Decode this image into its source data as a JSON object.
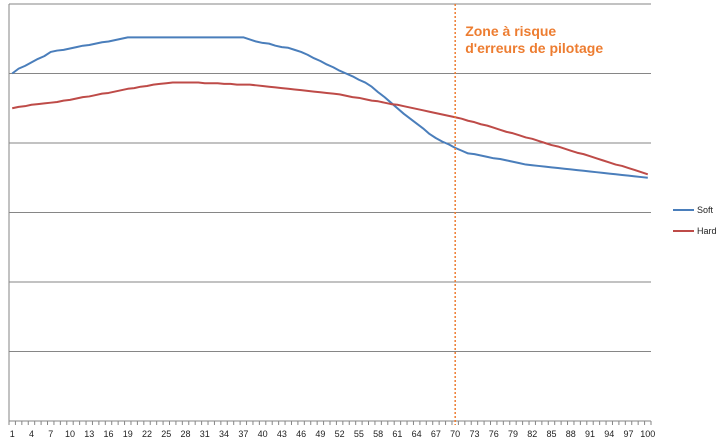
{
  "chart_data": {
    "type": "line",
    "x": [
      1,
      2,
      3,
      4,
      5,
      6,
      7,
      8,
      9,
      10,
      11,
      12,
      13,
      14,
      15,
      16,
      17,
      18,
      19,
      20,
      21,
      22,
      23,
      24,
      25,
      26,
      27,
      28,
      29,
      30,
      31,
      32,
      33,
      34,
      35,
      36,
      37,
      38,
      39,
      40,
      41,
      42,
      43,
      44,
      45,
      46,
      47,
      48,
      49,
      50,
      51,
      52,
      53,
      54,
      55,
      56,
      57,
      58,
      59,
      60,
      61,
      62,
      63,
      64,
      65,
      66,
      67,
      68,
      69,
      70,
      71,
      72,
      73,
      74,
      75,
      76,
      77,
      78,
      79,
      80,
      81,
      82,
      83,
      84,
      85,
      86,
      87,
      88,
      89,
      90,
      91,
      92,
      93,
      94,
      95,
      96,
      97,
      98,
      99,
      100
    ],
    "tick_labels": [
      "1",
      "4",
      "7",
      "10",
      "13",
      "16",
      "19",
      "22",
      "25",
      "28",
      "31",
      "34",
      "37",
      "40",
      "43",
      "46",
      "49",
      "52",
      "55",
      "58",
      "61",
      "64",
      "67",
      "70",
      "73",
      "76",
      "79",
      "82",
      "85",
      "88",
      "91",
      "94",
      "97",
      "100"
    ],
    "ylim": [
      0,
      6
    ],
    "gridlines": [
      1,
      2,
      3,
      4,
      5,
      6
    ],
    "grid": true,
    "legend_position": "right",
    "series": [
      {
        "name": "Soft",
        "color": "#4a7ebb",
        "values": [
          5.0,
          5.07,
          5.11,
          5.16,
          5.21,
          5.25,
          5.31,
          5.33,
          5.34,
          5.36,
          5.38,
          5.4,
          5.41,
          5.43,
          5.45,
          5.46,
          5.48,
          5.5,
          5.52,
          5.52,
          5.52,
          5.52,
          5.52,
          5.52,
          5.52,
          5.52,
          5.52,
          5.52,
          5.52,
          5.52,
          5.52,
          5.52,
          5.52,
          5.52,
          5.52,
          5.52,
          5.52,
          5.49,
          5.46,
          5.44,
          5.43,
          5.4,
          5.38,
          5.37,
          5.34,
          5.31,
          5.27,
          5.22,
          5.18,
          5.13,
          5.09,
          5.04,
          5.0,
          4.96,
          4.91,
          4.87,
          4.81,
          4.73,
          4.66,
          4.58,
          4.5,
          4.42,
          4.35,
          4.28,
          4.21,
          4.13,
          4.07,
          4.02,
          3.98,
          3.93,
          3.89,
          3.85,
          3.84,
          3.82,
          3.8,
          3.78,
          3.77,
          3.75,
          3.73,
          3.71,
          3.69,
          3.68,
          3.67,
          3.66,
          3.65,
          3.64,
          3.63,
          3.62,
          3.61,
          3.6,
          3.59,
          3.58,
          3.57,
          3.56,
          3.55,
          3.54,
          3.53,
          3.52,
          3.51,
          3.5
        ]
      },
      {
        "name": "Hard",
        "color": "#be4b48",
        "values": [
          4.5,
          4.52,
          4.53,
          4.55,
          4.56,
          4.57,
          4.58,
          4.59,
          4.61,
          4.62,
          4.64,
          4.66,
          4.67,
          4.69,
          4.71,
          4.72,
          4.74,
          4.76,
          4.78,
          4.79,
          4.81,
          4.82,
          4.84,
          4.85,
          4.86,
          4.87,
          4.87,
          4.87,
          4.87,
          4.87,
          4.86,
          4.86,
          4.86,
          4.85,
          4.85,
          4.84,
          4.84,
          4.84,
          4.83,
          4.82,
          4.81,
          4.8,
          4.79,
          4.78,
          4.77,
          4.76,
          4.75,
          4.74,
          4.73,
          4.72,
          4.71,
          4.7,
          4.68,
          4.66,
          4.65,
          4.63,
          4.61,
          4.6,
          4.58,
          4.56,
          4.55,
          4.53,
          4.51,
          4.49,
          4.47,
          4.45,
          4.43,
          4.41,
          4.39,
          4.37,
          4.35,
          4.32,
          4.3,
          4.27,
          4.25,
          4.22,
          4.19,
          4.16,
          4.14,
          4.11,
          4.08,
          4.06,
          4.03,
          4.0,
          3.97,
          3.95,
          3.92,
          3.89,
          3.86,
          3.84,
          3.81,
          3.78,
          3.75,
          3.72,
          3.69,
          3.67,
          3.64,
          3.61,
          3.58,
          3.55
        ]
      }
    ],
    "annotation": {
      "lines": [
        "Zone à risque",
        "d'erreurs de pilotage"
      ],
      "x": 70,
      "color": "#ed7d31"
    }
  }
}
